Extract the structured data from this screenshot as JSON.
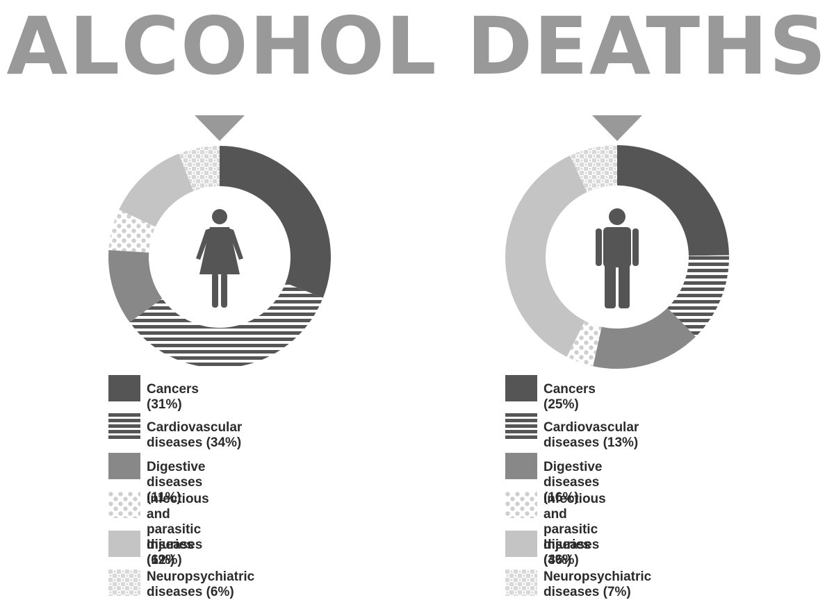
{
  "title": "ALCOHOL DEATHS",
  "colors": {
    "title": "#999999",
    "cancers": "#555555",
    "cardiovascular": "#555555",
    "digestive": "#888888",
    "infectious": "#cfcfcf",
    "injuries": "#c4c4c4",
    "neuropsychiatric": "#d8d8d8",
    "icon": "#555555",
    "pointer": "#999999"
  },
  "chart_data": [
    {
      "type": "pie",
      "variant": "donut",
      "icon": "female-icon",
      "categories": [
        "Cancers",
        "Cardiovascular diseases",
        "Digestive diseases",
        "Infectious and parasitic diseases",
        "Injuries",
        "Neuropsychiatric diseases"
      ],
      "values": [
        31,
        34,
        11,
        6,
        12,
        6
      ],
      "unit": "%",
      "legend_labels": [
        "Cancers (31%)",
        "Cardiovascular diseases (34%)",
        "Digestive diseases (11%)",
        "Infectious and\nparasitic diseases (6%)",
        "Injuries (12%)",
        "Neuropsychiatric\ndiseases (6%)"
      ],
      "legend_position": "bottom"
    },
    {
      "type": "pie",
      "variant": "donut",
      "icon": "male-icon",
      "categories": [
        "Cancers",
        "Cardiovascular diseases",
        "Digestive diseases",
        "Infectious and parasitic diseases",
        "Injuries",
        "Neuropsychiatric diseases"
      ],
      "values": [
        25,
        13,
        16,
        4,
        36,
        7
      ],
      "unit": "%",
      "legend_labels": [
        "Cancers (25%)",
        "Cardiovascular diseases (13%)",
        "Digestive diseases (16%)",
        "Infectious and\nparasitic diseases (4%)",
        "Injuries (36%)",
        "Neuropsychiatric\ndiseases (7%)"
      ],
      "legend_position": "bottom"
    }
  ]
}
